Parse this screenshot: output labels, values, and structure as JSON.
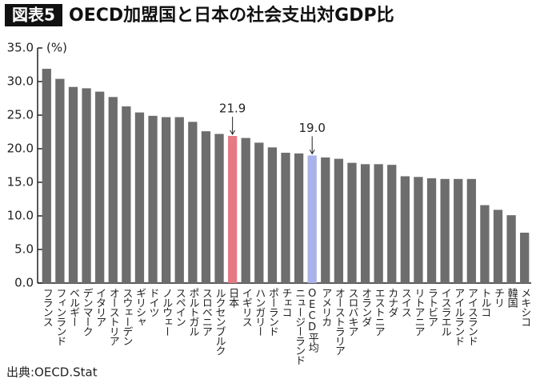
{
  "badge": "図表5",
  "source": "出典:OECD.Stat",
  "chart_data": {
    "type": "bar",
    "title": "OECD加盟国と日本の社会支出対GDP比",
    "y_unit_label": "(%)",
    "categories": [
      "フランス",
      "フィンランド",
      "ベルギー",
      "デンマーク",
      "イタリア",
      "オーストリア",
      "スウェーデン",
      "ギリシャ",
      "ドイツ",
      "ノルウェー",
      "スペイン",
      "ポルトガル",
      "スロベニア",
      "ルクセンブルク",
      "日本",
      "イギリス",
      "ハンガリー",
      "ポーランド",
      "チェコ",
      "ニュージーランド",
      "OECD平均",
      "アメリカ",
      "オーストラリア",
      "スロバキア",
      "オランダ",
      "エストニア",
      "カナダ",
      "スイス",
      "リトアニア",
      "ラトビア",
      "イスラエル",
      "アイルランド",
      "アイスランド",
      "トルコ",
      "チリ",
      "韓国",
      "メキシコ"
    ],
    "values": [
      31.9,
      30.4,
      29.2,
      29.0,
      28.5,
      27.7,
      26.3,
      25.4,
      24.9,
      24.7,
      24.7,
      24.0,
      22.6,
      22.2,
      21.9,
      21.6,
      20.9,
      20.2,
      19.4,
      19.3,
      19.0,
      18.7,
      18.5,
      17.9,
      17.7,
      17.7,
      17.6,
      15.9,
      15.8,
      15.6,
      15.5,
      15.5,
      15.5,
      11.6,
      10.9,
      10.1,
      7.5
    ],
    "value_labels": [
      null,
      null,
      null,
      null,
      null,
      null,
      null,
      null,
      null,
      null,
      null,
      null,
      null,
      null,
      "21.9",
      null,
      null,
      null,
      null,
      null,
      "19.0",
      null,
      null,
      null,
      null,
      null,
      null,
      null,
      null,
      null,
      null,
      null,
      null,
      null,
      null,
      null,
      null
    ],
    "colors": [
      "#6d6d6d",
      "#6d6d6d",
      "#6d6d6d",
      "#6d6d6d",
      "#6d6d6d",
      "#6d6d6d",
      "#6d6d6d",
      "#6d6d6d",
      "#6d6d6d",
      "#6d6d6d",
      "#6d6d6d",
      "#6d6d6d",
      "#6d6d6d",
      "#6d6d6d",
      "#e57a84",
      "#6d6d6d",
      "#6d6d6d",
      "#6d6d6d",
      "#6d6d6d",
      "#6d6d6d",
      "#a9b3ea",
      "#6d6d6d",
      "#6d6d6d",
      "#6d6d6d",
      "#6d6d6d",
      "#6d6d6d",
      "#6d6d6d",
      "#6d6d6d",
      "#6d6d6d",
      "#6d6d6d",
      "#6d6d6d",
      "#6d6d6d",
      "#6d6d6d",
      "#6d6d6d",
      "#6d6d6d",
      "#6d6d6d",
      "#6d6d6d"
    ],
    "ylim": [
      0,
      35
    ],
    "yticks": [
      {
        "value": 0,
        "label": "0.0"
      },
      {
        "value": 5,
        "label": "5.0"
      },
      {
        "value": 10,
        "label": "10.0"
      },
      {
        "value": 15,
        "label": "15.0"
      },
      {
        "value": 20,
        "label": "20.0"
      },
      {
        "value": 25,
        "label": "25.0"
      },
      {
        "value": 30,
        "label": "30.0"
      },
      {
        "value": 35,
        "label": "35.0"
      }
    ],
    "grid": false
  }
}
